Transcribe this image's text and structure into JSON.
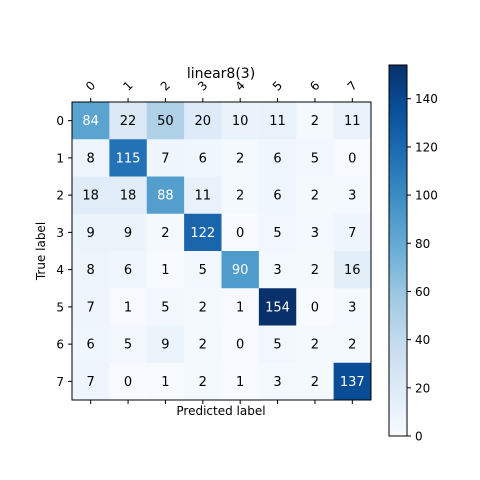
{
  "chart_data": {
    "type": "heatmap",
    "title": "linear8(3)",
    "xlabel": "Predicted label",
    "ylabel": "True label",
    "x_categories": [
      "0",
      "1",
      "2",
      "3",
      "4",
      "5",
      "6",
      "7"
    ],
    "y_categories": [
      "0",
      "1",
      "2",
      "3",
      "4",
      "5",
      "6",
      "7"
    ],
    "matrix": [
      [
        84,
        22,
        50,
        20,
        10,
        11,
        2,
        11
      ],
      [
        8,
        115,
        7,
        6,
        2,
        6,
        5,
        0
      ],
      [
        18,
        18,
        88,
        11,
        2,
        6,
        2,
        3
      ],
      [
        9,
        9,
        2,
        122,
        0,
        5,
        3,
        7
      ],
      [
        8,
        6,
        1,
        5,
        90,
        3,
        2,
        16
      ],
      [
        7,
        1,
        5,
        2,
        1,
        154,
        0,
        3
      ],
      [
        6,
        5,
        9,
        2,
        0,
        5,
        2,
        2
      ],
      [
        7,
        0,
        1,
        2,
        1,
        3,
        2,
        137
      ]
    ],
    "colormap": "Blues",
    "vmin": 0,
    "vmax": 154,
    "colorbar_ticks": [
      0,
      20,
      40,
      60,
      80,
      100,
      120,
      140
    ],
    "grid": false,
    "legend": "colorbar-right"
  }
}
